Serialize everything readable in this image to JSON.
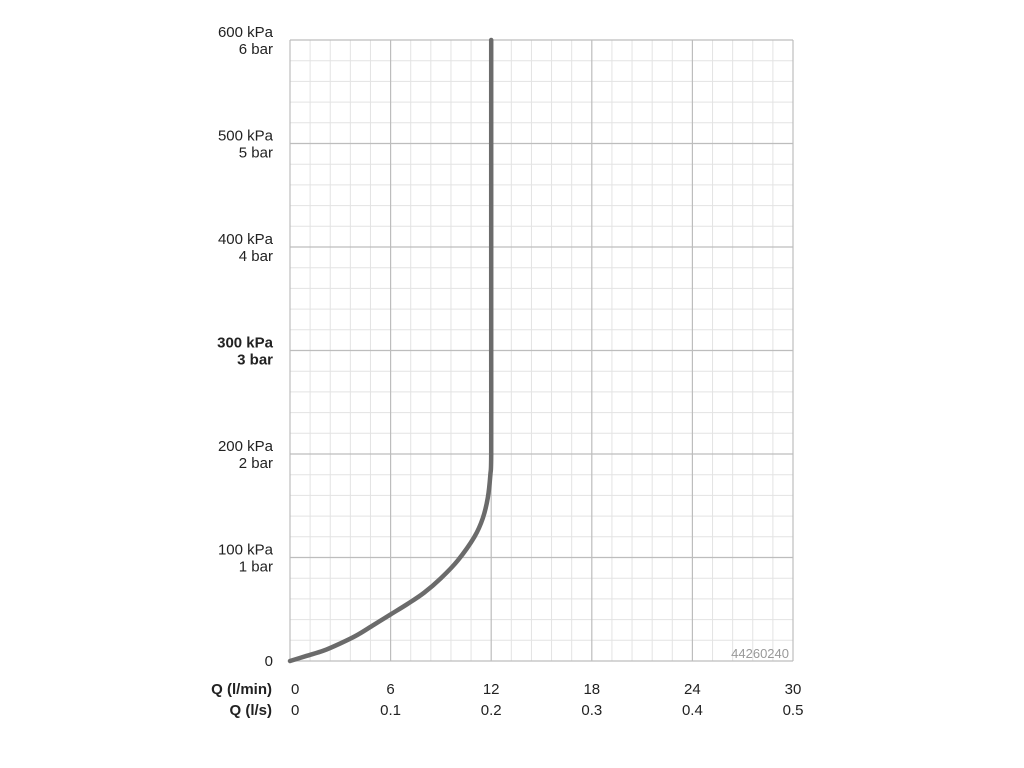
{
  "chart_data": {
    "type": "line",
    "x_axes": [
      {
        "label": "Q (l/min)",
        "ticks": [
          "0",
          "6",
          "12",
          "18",
          "24",
          "30"
        ],
        "range": [
          0,
          30
        ]
      },
      {
        "label": "Q (l/s)",
        "ticks": [
          "0",
          "0.1",
          "0.2",
          "0.3",
          "0.4",
          "0.5"
        ],
        "range": [
          0,
          0.5
        ]
      }
    ],
    "y_axis": {
      "unit": "kPa",
      "range": [
        0,
        600
      ],
      "ticks": [
        {
          "value": 0,
          "kpa": "0",
          "bar": ""
        },
        {
          "value": 100,
          "kpa": "100 kPa",
          "bar": "1 bar"
        },
        {
          "value": 200,
          "kpa": "200 kPa",
          "bar": "2 bar"
        },
        {
          "value": 300,
          "kpa": "300 kPa",
          "bar": "3 bar",
          "bold": true
        },
        {
          "value": 400,
          "kpa": "400 kPa",
          "bar": "4 bar"
        },
        {
          "value": 500,
          "kpa": "500 kPa",
          "bar": "5 bar"
        },
        {
          "value": 600,
          "kpa": "600 kPa",
          "bar": "6 bar"
        }
      ]
    },
    "grid": true,
    "minor_divisions": 5,
    "series": [
      {
        "color": "#6b6b6b",
        "points": [
          [
            0,
            0
          ],
          [
            1,
            5
          ],
          [
            2,
            10
          ],
          [
            3,
            17
          ],
          [
            4,
            25
          ],
          [
            5,
            35
          ],
          [
            6,
            45
          ],
          [
            7,
            55
          ],
          [
            8,
            66
          ],
          [
            9,
            80
          ],
          [
            10,
            97
          ],
          [
            11,
            120
          ],
          [
            11.5,
            138
          ],
          [
            11.8,
            158
          ],
          [
            11.95,
            180
          ],
          [
            12,
            200
          ],
          [
            12,
            300
          ],
          [
            12,
            400
          ],
          [
            12,
            500
          ],
          [
            12,
            600
          ]
        ]
      }
    ],
    "watermark": "44260240"
  }
}
